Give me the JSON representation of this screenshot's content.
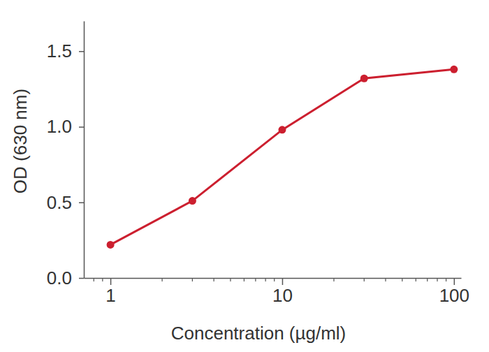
{
  "chart_data": {
    "type": "line",
    "log": "x",
    "x_label": "Concentration (µg/ml)",
    "y_label": "OD (630 nm)",
    "x": [
      1,
      3,
      10,
      30,
      100
    ],
    "values": [
      0.22,
      0.51,
      0.98,
      1.32,
      1.38
    ],
    "color": "#cc1f2f",
    "marker": "circle",
    "line_style": "solid",
    "xlim": [
      0.7,
      110
    ],
    "xticks": [
      1,
      10,
      100
    ],
    "x_minor_ticks": [
      0.8,
      0.9,
      2,
      3,
      4,
      5,
      6,
      7,
      8,
      9,
      20,
      30,
      40,
      50,
      60,
      70,
      80,
      90
    ],
    "ylim": [
      0,
      1.7
    ],
    "yticks": [
      {
        "value": 0,
        "label": "0.0"
      },
      0.5,
      {
        "value": 1,
        "label": "1.0"
      },
      1.5
    ],
    "grid": false
  }
}
